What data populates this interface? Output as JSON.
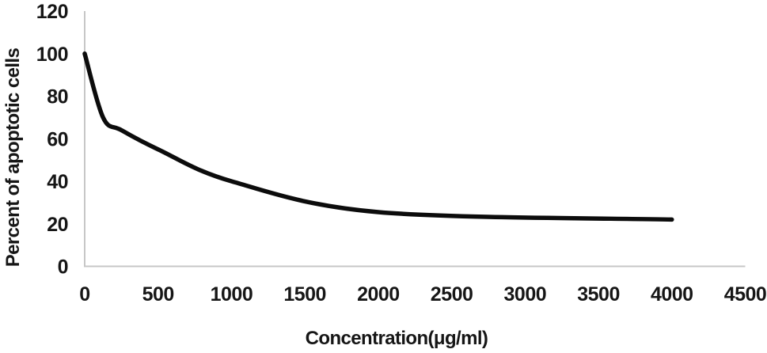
{
  "figure": {
    "background": "#ffffff"
  },
  "chart_data": {
    "type": "line",
    "title": "",
    "xlabel": "Concentration(μg/ml)",
    "ylabel": "Percent of apoptotic cells",
    "series_name": "Percent of apoptotic cells",
    "x": [
      0,
      125,
      250,
      500,
      1000,
      2000,
      4000
    ],
    "y": [
      100,
      70,
      64,
      55,
      40,
      25.5,
      22
    ],
    "xlim": [
      0,
      4500
    ],
    "ylim": [
      0,
      120
    ],
    "xticks": [
      0,
      500,
      1000,
      1500,
      2000,
      2500,
      3000,
      3500,
      4000,
      4500
    ],
    "yticks": [
      0,
      20,
      40,
      60,
      80,
      100,
      120
    ],
    "grid": false,
    "legend": "none",
    "smooth": true,
    "line_color": "#0c0c0c",
    "line_width": 5.5,
    "axis_color": "#c7c7c7",
    "text_color": "#161616"
  }
}
